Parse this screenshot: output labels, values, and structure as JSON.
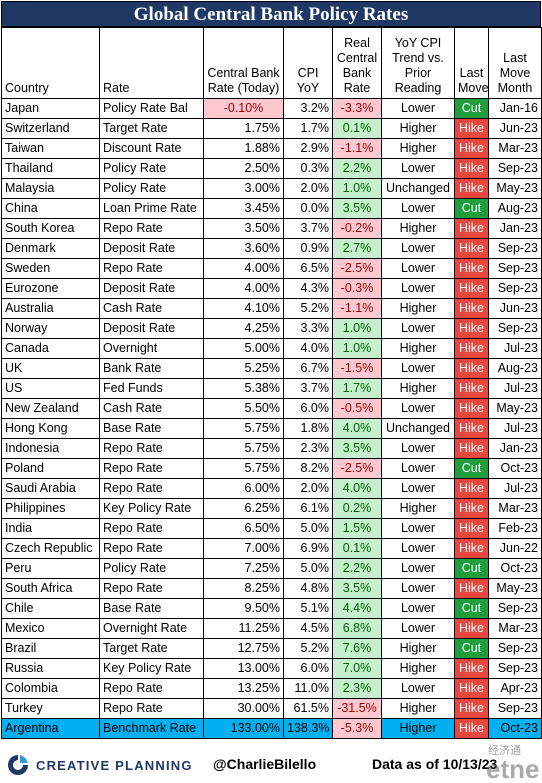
{
  "title": "Global Central Bank Policy Rates",
  "columns": [
    "Country",
    "Rate",
    "Central Bank Rate (Today)",
    "CPI YoY",
    "Real Central Bank Rate",
    "YoY CPI Trend vs. Prior Reading",
    "Last Move",
    "Last Move Month"
  ],
  "colors": {
    "header_bg": "#1f3864",
    "positive_bg": "#c6efce",
    "negative_bg": "#ffc7ce",
    "hike_bg": "#e8473f",
    "cut_bg": "#1f9e3e",
    "highlight_bg": "#00b0f0"
  },
  "footer": {
    "brand": "CREATIVE PLANNING",
    "handle": "@CharlieBilello",
    "as_of": "Data as of 10/13/23",
    "watermark": "经济通 etnet"
  },
  "chart_data": {
    "type": "table",
    "title": "Global Central Bank Policy Rates",
    "columns": [
      "Country",
      "Rate",
      "Central Bank Rate (Today)",
      "CPI YoY",
      "Real Central Bank Rate",
      "YoY CPI Trend vs. Prior Reading",
      "Last Move",
      "Last Move Month"
    ],
    "rows": [
      [
        "Japan",
        "Policy Rate Bal",
        "-0.10%",
        "3.2%",
        "-3.3%",
        "Lower",
        "Cut",
        "Jan-16"
      ],
      [
        "Switzerland",
        "Target Rate",
        "1.75%",
        "1.7%",
        "0.1%",
        "Higher",
        "Hike",
        "Jun-23"
      ],
      [
        "Taiwan",
        "Discount Rate",
        "1.88%",
        "2.9%",
        "-1.1%",
        "Higher",
        "Hike",
        "Mar-23"
      ],
      [
        "Thailand",
        "Policy Rate",
        "2.50%",
        "0.3%",
        "2.2%",
        "Lower",
        "Hike",
        "Sep-23"
      ],
      [
        "Malaysia",
        "Policy Rate",
        "3.00%",
        "2.0%",
        "1.0%",
        "Unchanged",
        "Hike",
        "May-23"
      ],
      [
        "China",
        "Loan Prime Rate",
        "3.45%",
        "0.0%",
        "3.5%",
        "Lower",
        "Cut",
        "Aug-23"
      ],
      [
        "South Korea",
        "Repo Rate",
        "3.50%",
        "3.7%",
        "-0.2%",
        "Higher",
        "Hike",
        "Jan-23"
      ],
      [
        "Denmark",
        "Deposit Rate",
        "3.60%",
        "0.9%",
        "2.7%",
        "Lower",
        "Hike",
        "Sep-23"
      ],
      [
        "Sweden",
        "Repo Rate",
        "4.00%",
        "6.5%",
        "-2.5%",
        "Lower",
        "Hike",
        "Sep-23"
      ],
      [
        "Eurozone",
        "Deposit Rate",
        "4.00%",
        "4.3%",
        "-0.3%",
        "Lower",
        "Hike",
        "Sep-23"
      ],
      [
        "Australia",
        "Cash Rate",
        "4.10%",
        "5.2%",
        "-1.1%",
        "Higher",
        "Hike",
        "Jun-23"
      ],
      [
        "Norway",
        "Deposit Rate",
        "4.25%",
        "3.3%",
        "1.0%",
        "Lower",
        "Hike",
        "Sep-23"
      ],
      [
        "Canada",
        "Overnight",
        "5.00%",
        "4.0%",
        "1.0%",
        "Higher",
        "Hike",
        "Jul-23"
      ],
      [
        "UK",
        "Bank Rate",
        "5.25%",
        "6.7%",
        "-1.5%",
        "Lower",
        "Hike",
        "Aug-23"
      ],
      [
        "US",
        "Fed Funds",
        "5.38%",
        "3.7%",
        "1.7%",
        "Higher",
        "Hike",
        "Jul-23"
      ],
      [
        "New Zealand",
        "Cash Rate",
        "5.50%",
        "6.0%",
        "-0.5%",
        "Lower",
        "Hike",
        "May-23"
      ],
      [
        "Hong Kong",
        "Base Rate",
        "5.75%",
        "1.8%",
        "4.0%",
        "Unchanged",
        "Hike",
        "Jul-23"
      ],
      [
        "Indonesia",
        "Repo Rate",
        "5.75%",
        "2.3%",
        "3.5%",
        "Lower",
        "Hike",
        "Jan-23"
      ],
      [
        "Poland",
        "Repo Rate",
        "5.75%",
        "8.2%",
        "-2.5%",
        "Lower",
        "Cut",
        "Oct-23"
      ],
      [
        "Saudi Arabia",
        "Repo Rate",
        "6.00%",
        "2.0%",
        "4.0%",
        "Lower",
        "Hike",
        "Jul-23"
      ],
      [
        "Philippines",
        "Key Policy Rate",
        "6.25%",
        "6.1%",
        "0.2%",
        "Higher",
        "Hike",
        "Mar-23"
      ],
      [
        "India",
        "Repo Rate",
        "6.50%",
        "5.0%",
        "1.5%",
        "Lower",
        "Hike",
        "Feb-23"
      ],
      [
        "Czech Republic",
        "Repo Rate",
        "7.00%",
        "6.9%",
        "0.1%",
        "Lower",
        "Hike",
        "Jun-22"
      ],
      [
        "Peru",
        "Policy Rate",
        "7.25%",
        "5.0%",
        "2.2%",
        "Lower",
        "Cut",
        "Oct-23"
      ],
      [
        "South Africa",
        "Repo Rate",
        "8.25%",
        "4.8%",
        "3.5%",
        "Lower",
        "Hike",
        "May-23"
      ],
      [
        "Chile",
        "Base Rate",
        "9.50%",
        "5.1%",
        "4.4%",
        "Lower",
        "Cut",
        "Sep-23"
      ],
      [
        "Mexico",
        "Overnight Rate",
        "11.25%",
        "4.5%",
        "6.8%",
        "Lower",
        "Hike",
        "Mar-23"
      ],
      [
        "Brazil",
        "Target Rate",
        "12.75%",
        "5.2%",
        "7.6%",
        "Higher",
        "Cut",
        "Sep-23"
      ],
      [
        "Russia",
        "Key Policy Rate",
        "13.00%",
        "6.0%",
        "7.0%",
        "Higher",
        "Hike",
        "Sep-23"
      ],
      [
        "Colombia",
        "Repo Rate",
        "13.25%",
        "11.0%",
        "2.3%",
        "Lower",
        "Hike",
        "Apr-23"
      ],
      [
        "Turkey",
        "Repo Rate",
        "30.00%",
        "61.5%",
        "-31.5%",
        "Higher",
        "Hike",
        "Sep-23"
      ],
      [
        "Argentina",
        "Benchmark Rate",
        "133.00%",
        "138.3%",
        "-5.3%",
        "Higher",
        "Hike",
        "Oct-23"
      ]
    ],
    "highlight_row": "Argentina",
    "negative_central_bank_rate_highlight": [
      "Japan"
    ]
  }
}
